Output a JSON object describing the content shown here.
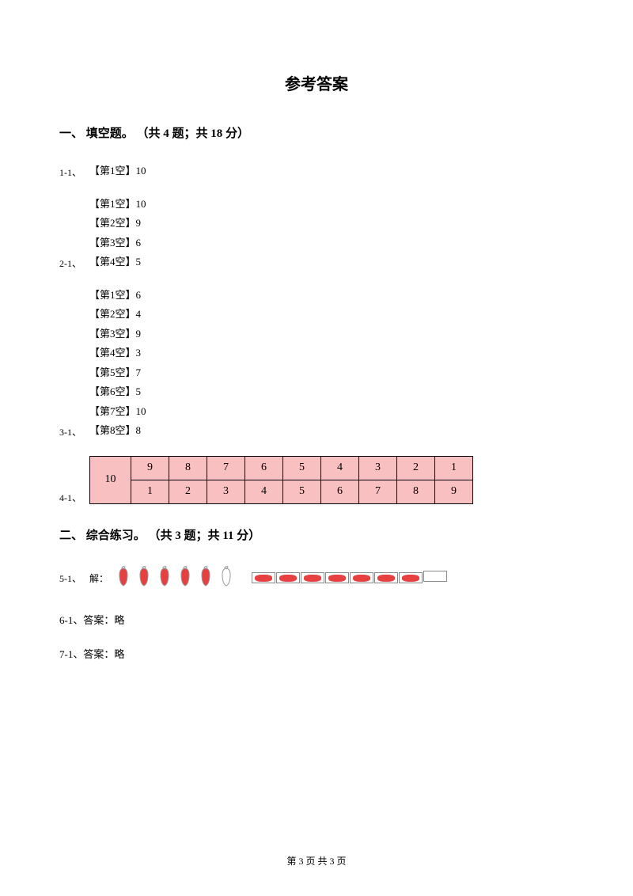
{
  "title": "参考答案",
  "section1": {
    "heading": "一、 填空题。 （共 4 题；共 18 分）",
    "q1": {
      "num": "1-1、",
      "blanks": [
        "【第1空】10"
      ]
    },
    "q2": {
      "num": "2-1、",
      "blanks": [
        "【第1空】10",
        "【第2空】9",
        "【第3空】6",
        "【第4空】5"
      ]
    },
    "q3": {
      "num": "3-1、",
      "blanks": [
        "【第1空】6",
        "【第2空】4",
        "【第3空】9",
        "【第4空】3",
        "【第5空】7",
        "【第6空】5",
        "【第7空】10",
        "【第8空】8"
      ]
    },
    "q4": {
      "num": "4-1、",
      "tencell": "10",
      "row1": [
        "9",
        "8",
        "7",
        "6",
        "5",
        "4",
        "3",
        "2",
        "1"
      ],
      "row2": [
        "1",
        "2",
        "3",
        "4",
        "5",
        "6",
        "7",
        "8",
        "9"
      ],
      "cell_bg": "#f8c0c0",
      "border": "#000000"
    }
  },
  "section2": {
    "heading": "二、 综合练习。 （共 3 题；共 11 分）",
    "q5": {
      "num": "5-1、",
      "solve_label": "解：",
      "peppers": [
        {
          "filled": true
        },
        {
          "filled": true
        },
        {
          "filled": true
        },
        {
          "filled": true
        },
        {
          "filled": true
        },
        {
          "filled": false
        }
      ],
      "rects": [
        {
          "filled": true
        },
        {
          "filled": true
        },
        {
          "filled": true
        },
        {
          "filled": true
        },
        {
          "filled": true
        },
        {
          "filled": true
        },
        {
          "filled": true
        },
        {
          "filled": false
        }
      ],
      "pepper_fill": "#e64040",
      "pepper_empty": "#ffffff",
      "pepper_stroke": "#999999"
    },
    "q6": {
      "num": "6-1、",
      "text": "答案：略"
    },
    "q7": {
      "num": "7-1、",
      "text": "答案：略"
    }
  },
  "footer": "第 3 页 共 3 页"
}
